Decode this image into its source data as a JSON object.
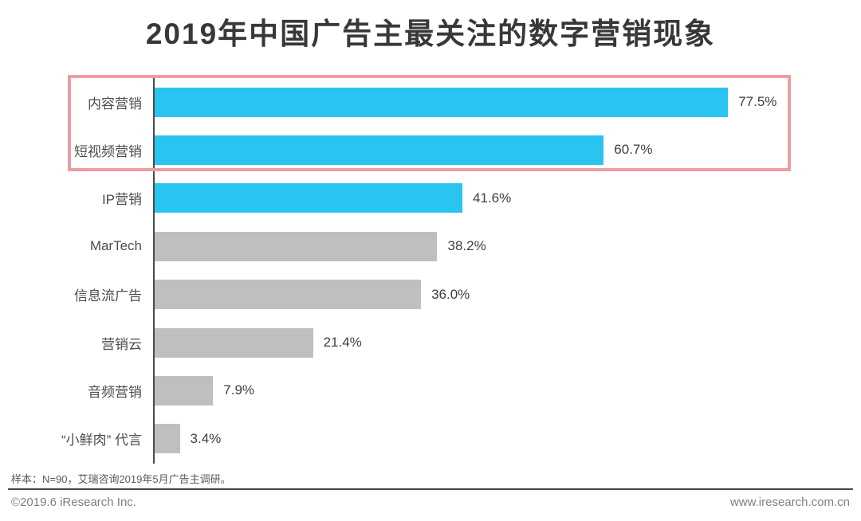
{
  "title": "2019年中国广告主最关注的数字营销现象",
  "chart_data": {
    "type": "bar",
    "orientation": "horizontal",
    "title": "2019年中国广告主最关注的数字营销现象",
    "xlabel": "",
    "ylabel": "",
    "xlim": [
      0,
      100
    ],
    "unit": "%",
    "grid": false,
    "categories": [
      "内容营销",
      "短视频营销",
      "IP营销",
      "MarTech",
      "信息流广告",
      "营销云",
      "音频营销",
      "“小鲜肉” 代言"
    ],
    "values": [
      77.5,
      60.7,
      41.6,
      38.2,
      36.0,
      21.4,
      7.9,
      3.4
    ],
    "rows": [
      {
        "category": "内容营销",
        "value": 77.5,
        "value_label": "77.5%",
        "color": "#29C5F0",
        "highlighted": true
      },
      {
        "category": "短视频营销",
        "value": 60.7,
        "value_label": "60.7%",
        "color": "#29C5F0",
        "highlighted": true
      },
      {
        "category": "IP营销",
        "value": 41.6,
        "value_label": "41.6%",
        "color": "#29C5F0",
        "highlighted": false
      },
      {
        "category": "MarTech",
        "value": 38.2,
        "value_label": "38.2%",
        "color": "#BFBFC1",
        "highlighted": false
      },
      {
        "category": "信息流广告",
        "value": 36.0,
        "value_label": "36.0%",
        "color": "#BFBFC1",
        "highlighted": false
      },
      {
        "category": "营销云",
        "value": 21.4,
        "value_label": "21.4%",
        "color": "#BFBFC1",
        "highlighted": false
      },
      {
        "category": "音频营销",
        "value": 7.9,
        "value_label": "7.9%",
        "color": "#BFBFC1",
        "highlighted": false
      },
      {
        "category": "“小鲜肉” 代言",
        "value": 3.4,
        "value_label": "3.4%",
        "color": "#BFBFC1",
        "highlighted": false
      }
    ],
    "colors": {
      "emphasis_bar": "#29C5F0",
      "normal_bar": "#BFBFC1",
      "highlight_border": "#EC9DA4",
      "axis": "#4a4a4a",
      "title_text": "#383838",
      "label_text": "#4d4d4d"
    },
    "annotations": [
      "top-two bars outlined with pink highlight box"
    ]
  },
  "footnote": "样本：N=90，艾瑞咨询2019年5月广告主调研。",
  "footer": {
    "copyright": "©2019.6 iResearch Inc.",
    "website": "www.iresearch.com.cn"
  }
}
